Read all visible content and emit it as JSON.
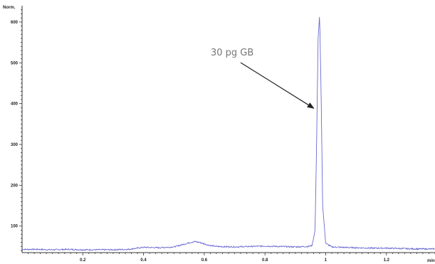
{
  "chart_data": {
    "type": "line",
    "title": "",
    "xlabel": "min",
    "ylabel": "Norm.",
    "xlim": [
      0.0,
      1.36
    ],
    "ylim": [
      35,
      640
    ],
    "x_ticks": [
      {
        "value": 0.2,
        "label": "0.2"
      },
      {
        "value": 0.4,
        "label": "0.4"
      },
      {
        "value": 0.6,
        "label": "0.6"
      },
      {
        "value": 0.8,
        "label": "0.8"
      },
      {
        "value": 1.0,
        "label": "1"
      },
      {
        "value": 1.2,
        "label": "1.2"
      }
    ],
    "y_ticks": [
      {
        "value": 100,
        "label": "100"
      },
      {
        "value": 200,
        "label": "200"
      },
      {
        "value": 300,
        "label": "300"
      },
      {
        "value": 400,
        "label": "400"
      },
      {
        "value": 500,
        "label": "500"
      },
      {
        "value": 600,
        "label": "600"
      }
    ],
    "grid": false,
    "line_color": "#6a6ad0",
    "series": [
      {
        "x": [
          0.0,
          0.05,
          0.1,
          0.15,
          0.2,
          0.25,
          0.3,
          0.35,
          0.38,
          0.4,
          0.45,
          0.5,
          0.53,
          0.555,
          0.57,
          0.585,
          0.61,
          0.64,
          0.7,
          0.75,
          0.8,
          0.85,
          0.9,
          0.94,
          0.955,
          0.965,
          0.97,
          0.975,
          0.98,
          0.985,
          0.99,
          1.0,
          1.02,
          1.05,
          1.1,
          1.15,
          1.2,
          1.25,
          1.3,
          1.36
        ],
        "y": [
          43,
          43,
          42,
          43,
          42,
          42,
          42,
          43,
          46,
          48,
          47,
          49,
          55,
          60,
          62,
          60,
          54,
          50,
          49,
          50,
          51,
          50,
          49,
          50,
          52,
          90,
          300,
          560,
          618,
          420,
          150,
          58,
          49,
          48,
          47,
          46,
          46,
          45,
          44,
          44
        ]
      }
    ],
    "annotations": [
      {
        "text": "30 pg GB",
        "target_x": 0.975,
        "target_y": 420,
        "arrow": true
      }
    ]
  }
}
